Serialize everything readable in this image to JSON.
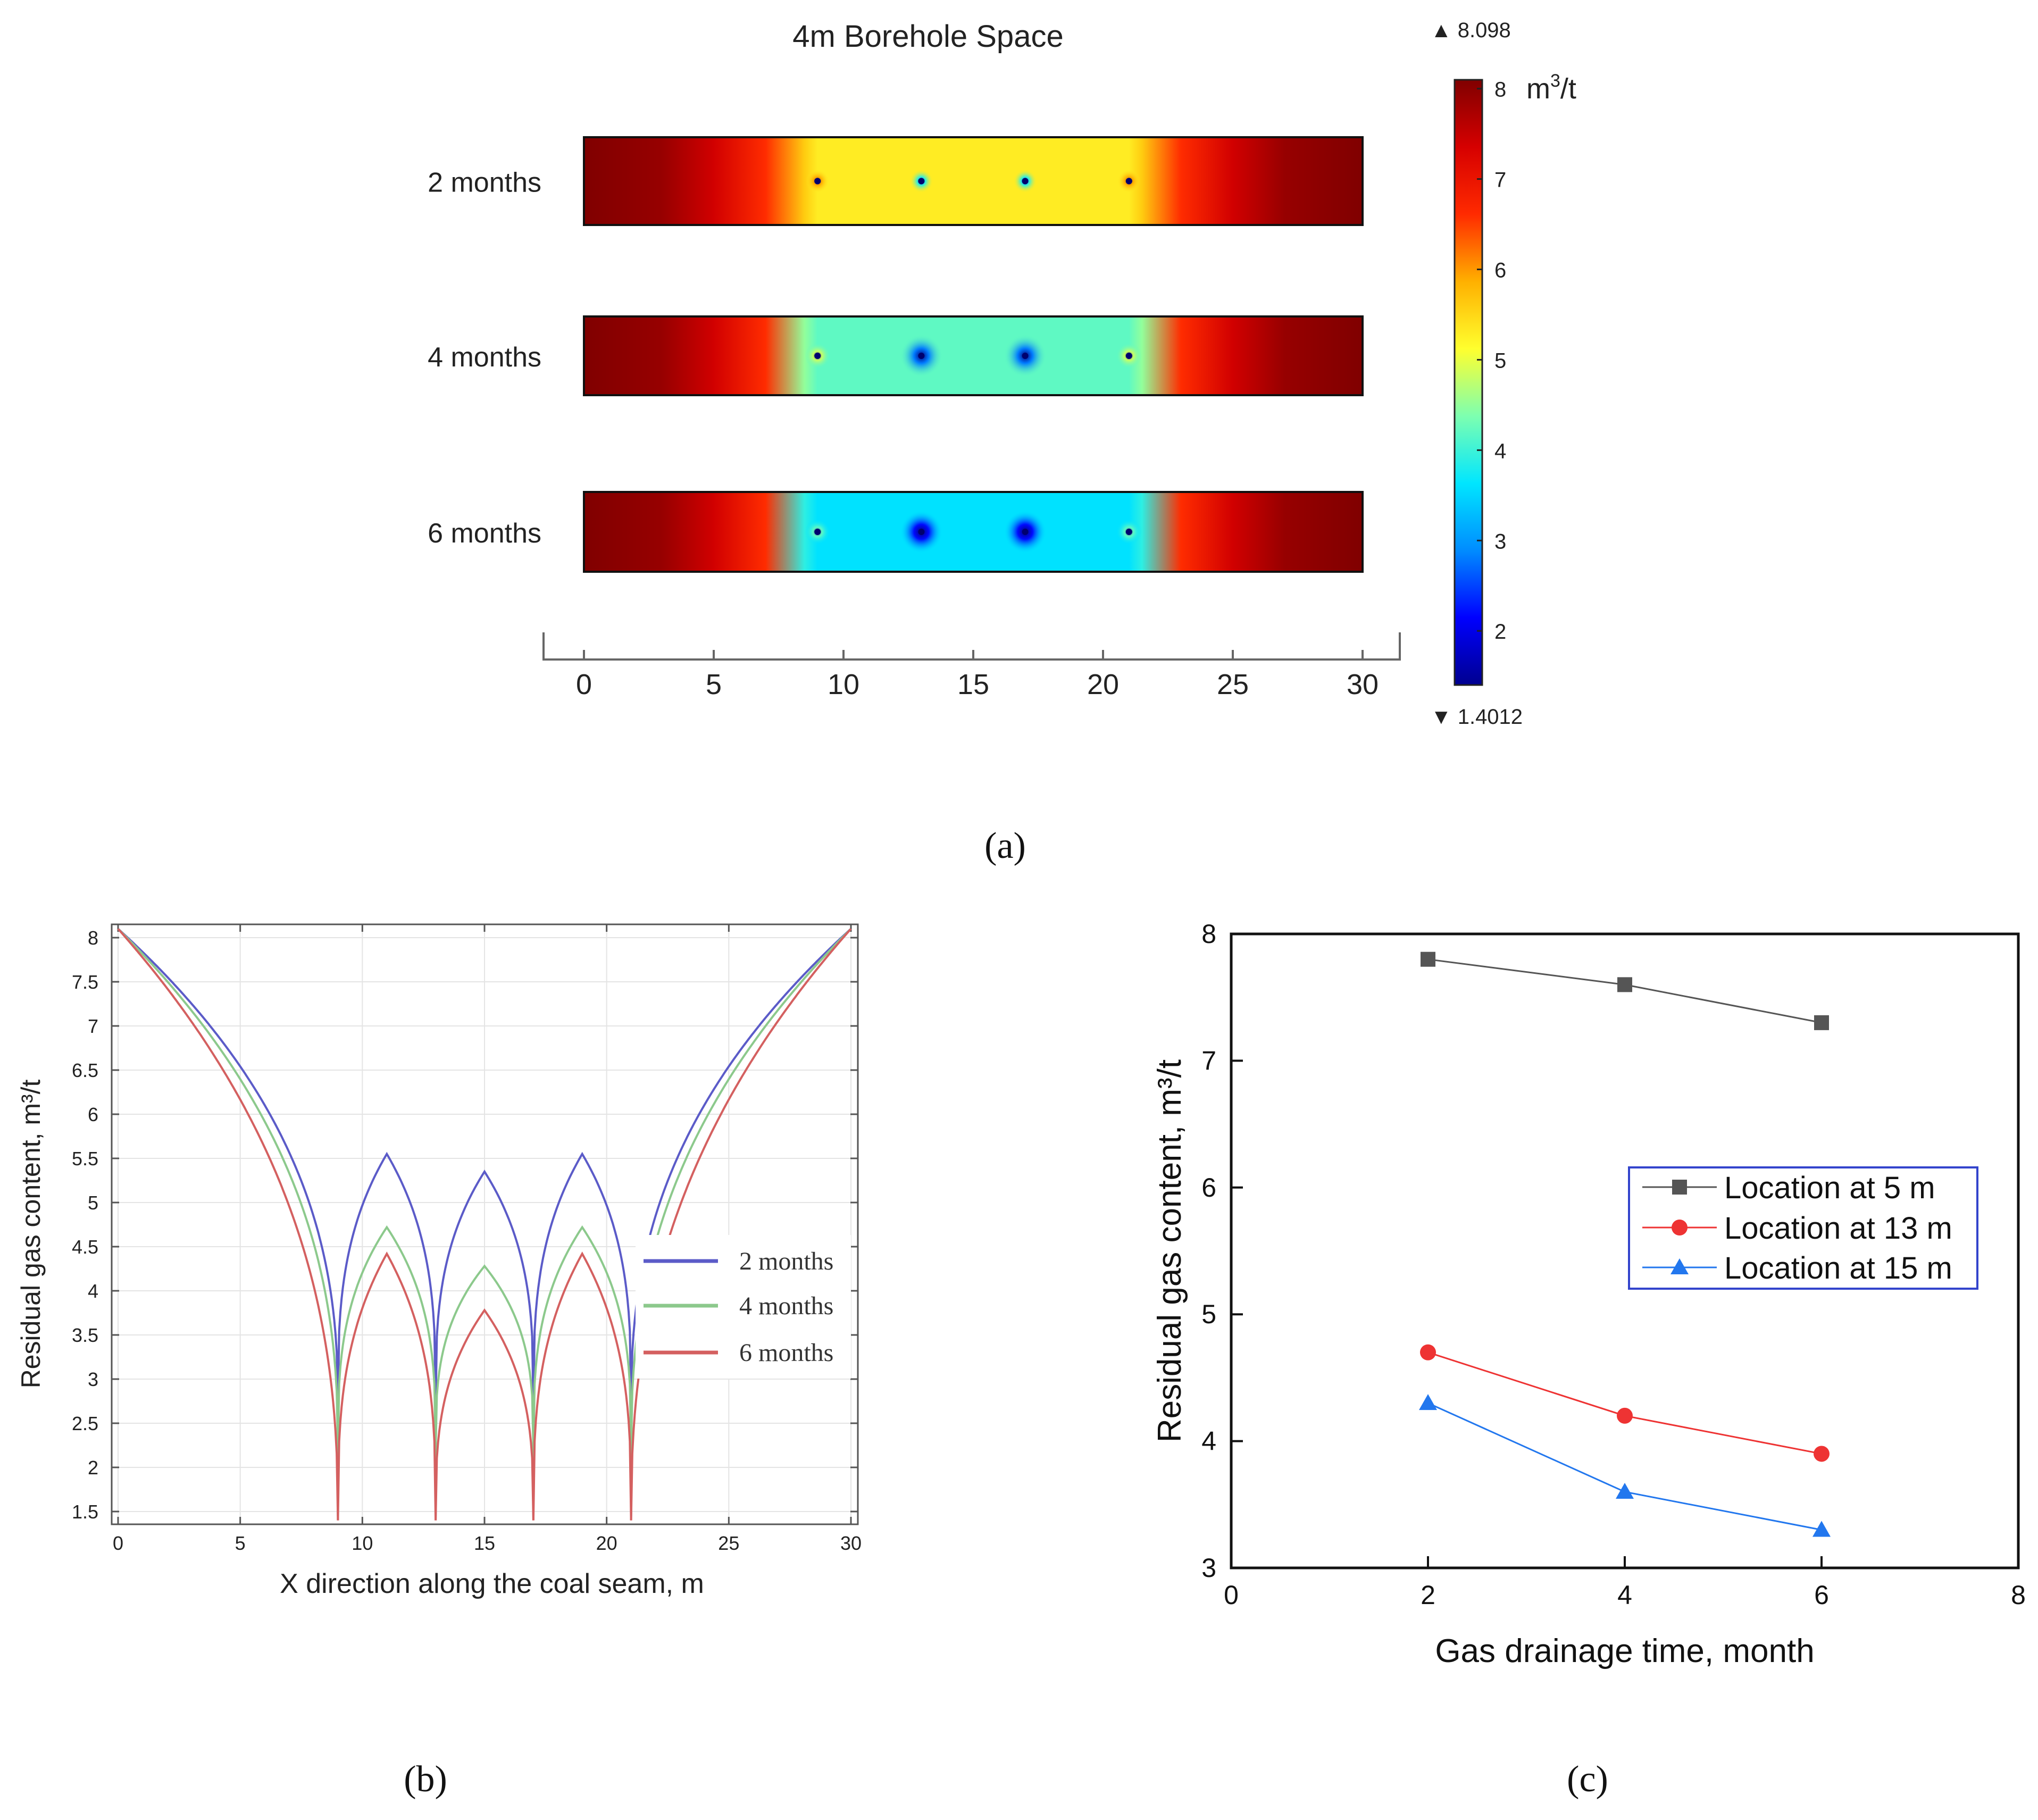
{
  "colors": {
    "heat_stops": [
      "#00008f",
      "#0000ff",
      "#008cff",
      "#00e6ff",
      "#7dffb0",
      "#ffff2e",
      "#ffb000",
      "#ff2a00",
      "#d60000",
      "#800000"
    ],
    "series_b": [
      "#5b5bc8",
      "#8cc98c",
      "#d46060"
    ],
    "series_c": [
      "#555555",
      "#ee3333",
      "#2277ee"
    ],
    "legend_c_border": "#3344cc"
  },
  "chart_data": [
    {
      "id": "a",
      "type": "heatmap",
      "title": "4m Borehole Space",
      "panel_label": "(a)",
      "rows": [
        {
          "label": "2 months",
          "hole_value": 5.3
        },
        {
          "label": "4 months",
          "hole_value": 4.2
        },
        {
          "label": "6 months",
          "hole_value": 3.6
        }
      ],
      "borehole_x": [
        9,
        13,
        17,
        21
      ],
      "x_ticks": [
        "0",
        "5",
        "10",
        "15",
        "20",
        "25",
        "30"
      ],
      "x_range": [
        0,
        30
      ],
      "colorbar": {
        "max_label": "▲ 8.098",
        "min_label": "▼ 1.4012",
        "max": 8.098,
        "min": 1.4012,
        "ticks": [
          "8",
          "7",
          "6",
          "5",
          "4",
          "3",
          "2"
        ],
        "unit_main": "m",
        "unit_sup": "3",
        "unit_rest": "/t"
      }
    },
    {
      "id": "b",
      "type": "line",
      "panel_label": "(b)",
      "xlabel": "X direction along the coal seam, m",
      "ylabel": "Residual gas content, m³/t",
      "xlim": [
        0,
        30
      ],
      "ylim": [
        1.4,
        8.15
      ],
      "x_ticks": [
        "0",
        "5",
        "10",
        "15",
        "20",
        "25",
        "30"
      ],
      "y_ticks": [
        "1.5",
        "2",
        "2.5",
        "3",
        "3.5",
        "4",
        "4.5",
        "5",
        "5.5",
        "6",
        "6.5",
        "7",
        "7.5",
        "8"
      ],
      "boreholes": [
        9,
        13,
        17,
        21
      ],
      "series": [
        {
          "name": "2 months",
          "edge_value": 8.1,
          "peaks": [
            5.55,
            5.35,
            5.55
          ],
          "notch_min": 2.7
        },
        {
          "name": "4 months",
          "edge_value": 8.1,
          "peaks": [
            4.72,
            4.28,
            4.72
          ],
          "notch_min": 2.2
        },
        {
          "name": "6 months",
          "edge_value": 8.1,
          "peaks": [
            4.42,
            3.78,
            4.42
          ],
          "notch_min": 1.4
        }
      ]
    },
    {
      "id": "c",
      "type": "line",
      "panel_label": "(c)",
      "xlabel": "Gas drainage time, month",
      "ylabel": "Residual gas content, m³/t",
      "xlim": [
        0,
        8
      ],
      "ylim": [
        3,
        8
      ],
      "x_ticks": [
        "0",
        "2",
        "4",
        "6",
        "8"
      ],
      "y_ticks": [
        "3",
        "4",
        "5",
        "6",
        "7",
        "8"
      ],
      "x": [
        2,
        4,
        6
      ],
      "series": [
        {
          "name": "Location at 5 m",
          "marker": "square",
          "values": [
            7.8,
            7.6,
            7.3
          ]
        },
        {
          "name": "Location at 13 m",
          "marker": "circle",
          "values": [
            4.7,
            4.2,
            3.9
          ]
        },
        {
          "name": "Location at 15 m",
          "marker": "triangle",
          "values": [
            4.3,
            3.6,
            3.3
          ]
        }
      ]
    }
  ]
}
